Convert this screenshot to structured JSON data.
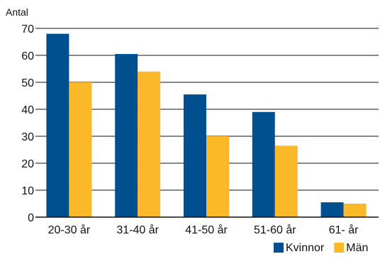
{
  "chart_data": {
    "type": "bar",
    "title": "",
    "xlabel": "",
    "ylabel": "Antal",
    "categories": [
      "20-30 år",
      "31-40 år",
      "41-50 år",
      "51-60 år",
      "61- år"
    ],
    "series": [
      {
        "name": "Kvinnor",
        "color": "#00508f",
        "values": [
          68,
          60.5,
          45.5,
          39,
          5.5
        ]
      },
      {
        "name": "Män",
        "color": "#fbb829",
        "values": [
          50,
          54,
          30,
          26.5,
          5
        ]
      }
    ],
    "ylim": [
      0,
      70
    ],
    "yticks": [
      0,
      10,
      20,
      30,
      40,
      50,
      60,
      70
    ],
    "grid": true,
    "legend_position": "bottom-right"
  }
}
